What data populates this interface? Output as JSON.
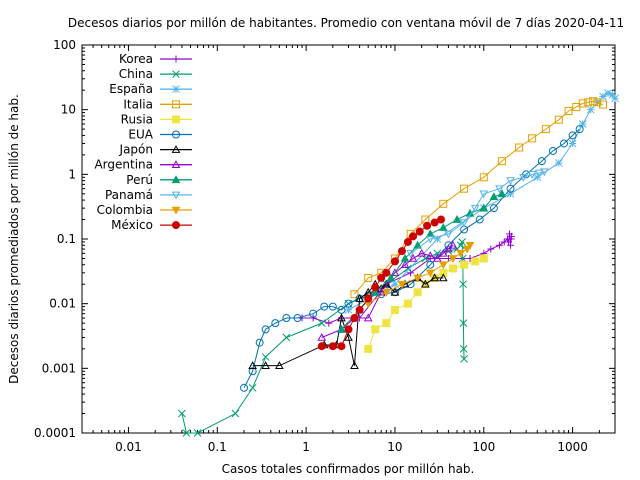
{
  "chart_data": {
    "type": "line",
    "title": "Decesos diarios por millón de habitantes. Promedio con ventana móvil de 7 días 2020-04-11",
    "xlabel": "Casos totales confirmados por millón hab.",
    "ylabel": "Decesos diarios promediados por millón de hab.",
    "xscale": "log",
    "yscale": "log",
    "xlim": [
      0.003,
      3000
    ],
    "ylim": [
      0.0001,
      100
    ],
    "xticks": [
      {
        "value": 0.01,
        "label": "0.01"
      },
      {
        "value": 0.1,
        "label": "0.1"
      },
      {
        "value": 1,
        "label": "1"
      },
      {
        "value": 10,
        "label": "10"
      },
      {
        "value": 100,
        "label": "100"
      },
      {
        "value": 1000,
        "label": "1000"
      }
    ],
    "yticks": [
      {
        "value": 0.0001,
        "label": "0.0001"
      },
      {
        "value": 0.001,
        "label": "0.001"
      },
      {
        "value": 0.01,
        "label": "0.01"
      },
      {
        "value": 0.1,
        "label": "0.1"
      },
      {
        "value": 1,
        "label": "1"
      },
      {
        "value": 10,
        "label": "10"
      },
      {
        "value": 100,
        "label": "100"
      }
    ],
    "legend_position": "top-left",
    "grid": false,
    "series": [
      {
        "name": "Korea",
        "color": "#9400d3",
        "marker": "plus",
        "points": [
          [
            0.9,
            0.006
          ],
          [
            1.2,
            0.006
          ],
          [
            1.8,
            0.005
          ],
          [
            2.5,
            0.006
          ],
          [
            4,
            0.006
          ],
          [
            8,
            0.02
          ],
          [
            15,
            0.03
          ],
          [
            25,
            0.05
          ],
          [
            40,
            0.05
          ],
          [
            70,
            0.05
          ],
          [
            100,
            0.06
          ],
          [
            120,
            0.07
          ],
          [
            150,
            0.08
          ],
          [
            170,
            0.09
          ],
          [
            185,
            0.1
          ],
          [
            190,
            0.09
          ],
          [
            195,
            0.12
          ],
          [
            200,
            0.08
          ],
          [
            203,
            0.1
          ],
          [
            205,
            0.11
          ]
        ]
      },
      {
        "name": "China",
        "color": "#009e73",
        "marker": "cross",
        "points": [
          [
            0.04,
            0.0002
          ],
          [
            0.045,
            0.0001
          ],
          [
            0.06,
            0.0001
          ],
          [
            0.16,
            0.0002
          ],
          [
            0.25,
            0.0005
          ],
          [
            0.35,
            0.0015
          ],
          [
            0.6,
            0.003
          ],
          [
            1.5,
            0.005
          ],
          [
            3,
            0.01
          ],
          [
            8,
            0.02
          ],
          [
            14,
            0.035
          ],
          [
            22,
            0.05
          ],
          [
            30,
            0.06
          ],
          [
            40,
            0.065
          ],
          [
            50,
            0.07
          ],
          [
            55,
            0.08
          ],
          [
            57,
            0.09
          ],
          [
            58,
            0.05
          ],
          [
            58.5,
            0.02
          ],
          [
            59,
            0.005
          ],
          [
            59.5,
            0.002
          ],
          [
            60,
            0.0014
          ]
        ]
      },
      {
        "name": "España",
        "color": "#56b4e9",
        "marker": "star",
        "points": [
          [
            3,
            0.008
          ],
          [
            10,
            0.02
          ],
          [
            30,
            0.1
          ],
          [
            100,
            0.3
          ],
          [
            200,
            0.5
          ],
          [
            400,
            0.9
          ],
          [
            700,
            1.5
          ],
          [
            1000,
            3
          ],
          [
            1300,
            6
          ],
          [
            1600,
            10
          ],
          [
            1900,
            13
          ],
          [
            2200,
            16
          ],
          [
            2500,
            18
          ],
          [
            2800,
            17
          ],
          [
            3000,
            15
          ]
        ]
      },
      {
        "name": "Italia",
        "color": "#e69f00",
        "marker": "square",
        "points": [
          [
            3.5,
            0.014
          ],
          [
            5,
            0.025
          ],
          [
            7,
            0.03
          ],
          [
            10,
            0.05
          ],
          [
            15,
            0.12
          ],
          [
            22,
            0.2
          ],
          [
            35,
            0.35
          ],
          [
            60,
            0.6
          ],
          [
            100,
            0.9
          ],
          [
            160,
            1.6
          ],
          [
            250,
            2.6
          ],
          [
            350,
            3.6
          ],
          [
            500,
            5
          ],
          [
            700,
            7
          ],
          [
            900,
            9.5
          ],
          [
            1100,
            11
          ],
          [
            1300,
            12.5
          ],
          [
            1500,
            13
          ],
          [
            1700,
            13.5
          ],
          [
            1900,
            13
          ],
          [
            2200,
            12
          ]
        ]
      },
      {
        "name": "Rusia",
        "color": "#f0e442",
        "marker": "filledsquare",
        "points": [
          [
            5,
            0.002
          ],
          [
            6,
            0.004
          ],
          [
            8,
            0.005
          ],
          [
            10,
            0.008
          ],
          [
            14,
            0.01
          ],
          [
            18,
            0.015
          ],
          [
            22,
            0.02
          ],
          [
            28,
            0.025
          ],
          [
            35,
            0.03
          ],
          [
            45,
            0.035
          ],
          [
            60,
            0.04
          ],
          [
            80,
            0.045
          ],
          [
            100,
            0.05
          ]
        ]
      },
      {
        "name": "EUA",
        "color": "#0072b2",
        "marker": "circle",
        "points": [
          [
            0.2,
            0.0005
          ],
          [
            0.25,
            0.0009
          ],
          [
            0.3,
            0.0025
          ],
          [
            0.35,
            0.004
          ],
          [
            0.45,
            0.005
          ],
          [
            0.6,
            0.006
          ],
          [
            0.8,
            0.006
          ],
          [
            1.2,
            0.007
          ],
          [
            1.6,
            0.009
          ],
          [
            2,
            0.009
          ],
          [
            2.5,
            0.008
          ],
          [
            3,
            0.01
          ],
          [
            4,
            0.012
          ],
          [
            5,
            0.013
          ],
          [
            7,
            0.014
          ],
          [
            10,
            0.015
          ],
          [
            15,
            0.02
          ],
          [
            25,
            0.04
          ],
          [
            40,
            0.08
          ],
          [
            60,
            0.14
          ],
          [
            90,
            0.2
          ],
          [
            130,
            0.3
          ],
          [
            200,
            0.6
          ],
          [
            300,
            1
          ],
          [
            450,
            1.6
          ],
          [
            600,
            2.3
          ],
          [
            800,
            3
          ],
          [
            1000,
            4
          ],
          [
            1200,
            5
          ]
        ]
      },
      {
        "name": "Japón",
        "color": "#000000",
        "marker": "triangle",
        "points": [
          [
            0.25,
            0.0011
          ],
          [
            0.35,
            0.0011
          ],
          [
            0.5,
            0.0011
          ],
          [
            1.6,
            0.0023
          ],
          [
            2.2,
            0.0023
          ],
          [
            2.5,
            0.006
          ],
          [
            3,
            0.003
          ],
          [
            3.5,
            0.0011
          ],
          [
            4,
            0.012
          ],
          [
            5,
            0.015
          ],
          [
            6,
            0.02
          ],
          [
            7,
            0.017
          ],
          [
            8,
            0.02
          ],
          [
            10,
            0.015
          ],
          [
            13,
            0.02
          ],
          [
            18,
            0.025
          ],
          [
            22,
            0.02
          ],
          [
            28,
            0.025
          ],
          [
            35,
            0.025
          ]
        ]
      },
      {
        "name": "Argentina",
        "color": "#9400d3",
        "marker": "triangle",
        "points": [
          [
            1.5,
            0.003
          ],
          [
            2.5,
            0.004
          ],
          [
            3.5,
            0.006
          ],
          [
            5,
            0.006
          ],
          [
            7,
            0.015
          ],
          [
            10,
            0.03
          ],
          [
            13,
            0.04
          ],
          [
            16,
            0.05
          ],
          [
            20,
            0.06
          ],
          [
            25,
            0.055
          ],
          [
            30,
            0.05
          ],
          [
            35,
            0.06
          ],
          [
            40,
            0.07
          ],
          [
            45,
            0.08
          ]
        ]
      },
      {
        "name": "Perú",
        "color": "#009e73",
        "marker": "filledtriangle",
        "points": [
          [
            2.5,
            0.004
          ],
          [
            4,
            0.008
          ],
          [
            6,
            0.015
          ],
          [
            9,
            0.025
          ],
          [
            13,
            0.05
          ],
          [
            18,
            0.08
          ],
          [
            25,
            0.12
          ],
          [
            35,
            0.15
          ],
          [
            50,
            0.2
          ],
          [
            70,
            0.25
          ],
          [
            100,
            0.3
          ],
          [
            130,
            0.45
          ],
          [
            160,
            0.5
          ]
        ]
      },
      {
        "name": "Panamá",
        "color": "#56b4e9",
        "marker": "triangledown",
        "points": [
          [
            15,
            0.06
          ],
          [
            25,
            0.1
          ],
          [
            40,
            0.12
          ],
          [
            60,
            0.18
          ],
          [
            80,
            0.3
          ],
          [
            100,
            0.5
          ],
          [
            150,
            0.6
          ],
          [
            200,
            0.8
          ],
          [
            280,
            0.9
          ],
          [
            350,
            1
          ],
          [
            420,
            1.05
          ],
          [
            480,
            1.1
          ]
        ]
      },
      {
        "name": "Colombia",
        "color": "#e69f00",
        "marker": "filledtriangledown",
        "points": [
          [
            5,
            0.01
          ],
          [
            8,
            0.015
          ],
          [
            12,
            0.02
          ],
          [
            18,
            0.025
          ],
          [
            25,
            0.03
          ],
          [
            35,
            0.04
          ],
          [
            45,
            0.05
          ],
          [
            55,
            0.06
          ],
          [
            65,
            0.07
          ],
          [
            70,
            0.08
          ]
        ]
      },
      {
        "name": "México",
        "color": "#cc0000",
        "marker": "filledcircle",
        "points": [
          [
            1.5,
            0.0022
          ],
          [
            2,
            0.0022
          ],
          [
            2.5,
            0.0022
          ],
          [
            3,
            0.004
          ],
          [
            3.5,
            0.006
          ],
          [
            4,
            0.008
          ],
          [
            5,
            0.012
          ],
          [
            6,
            0.018
          ],
          [
            7,
            0.025
          ],
          [
            8,
            0.03
          ],
          [
            10,
            0.045
          ],
          [
            12,
            0.065
          ],
          [
            14,
            0.09
          ],
          [
            16,
            0.11
          ],
          [
            19,
            0.13
          ],
          [
            23,
            0.16
          ],
          [
            28,
            0.18
          ],
          [
            33,
            0.2
          ]
        ]
      }
    ]
  }
}
